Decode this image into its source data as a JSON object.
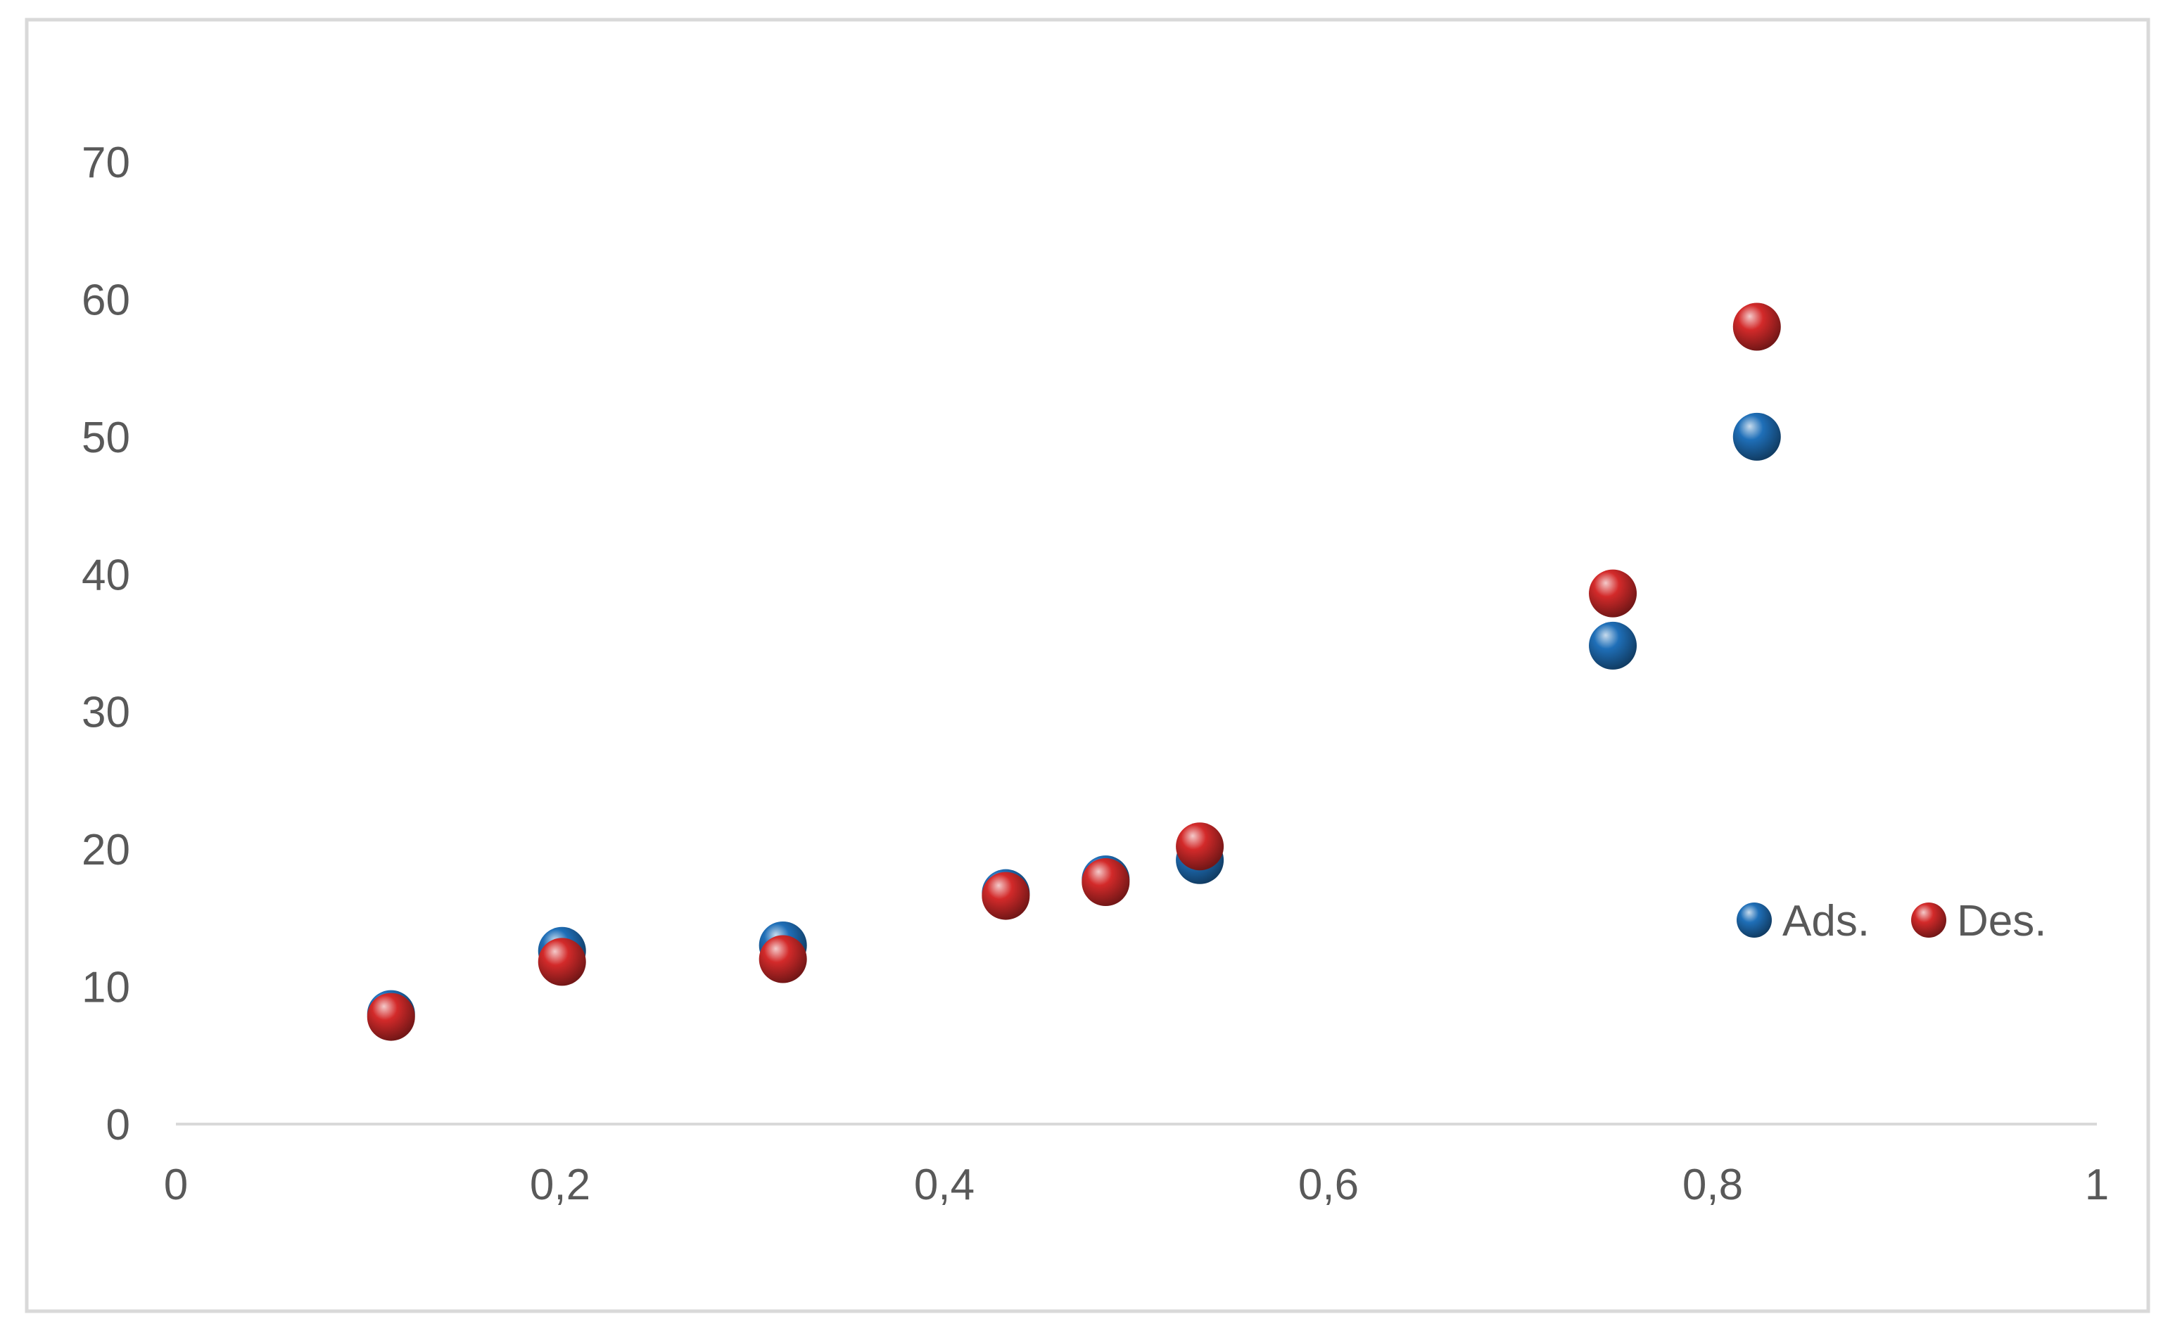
{
  "chart_data": {
    "type": "scatter",
    "xlim": [
      0,
      1
    ],
    "ylim": [
      0,
      70
    ],
    "x_ticks": [
      {
        "value": 0,
        "label": "0"
      },
      {
        "value": 0.2,
        "label": "0,2"
      },
      {
        "value": 0.4,
        "label": "0,4"
      },
      {
        "value": 0.6,
        "label": "0,6"
      },
      {
        "value": 0.8,
        "label": "0,8"
      },
      {
        "value": 1,
        "label": "1"
      }
    ],
    "y_ticks": [
      {
        "value": 0,
        "label": "0"
      },
      {
        "value": 10,
        "label": "10"
      },
      {
        "value": 20,
        "label": "20"
      },
      {
        "value": 30,
        "label": "30"
      },
      {
        "value": 40,
        "label": "40"
      },
      {
        "value": 50,
        "label": "50"
      },
      {
        "value": 60,
        "label": "60"
      },
      {
        "value": 70,
        "label": "70"
      }
    ],
    "grid": false,
    "legend_position": "right",
    "series": [
      {
        "name": "Ads.",
        "color": "#1f6fb8",
        "points": [
          {
            "x": 0.112,
            "y": 8.0
          },
          {
            "x": 0.201,
            "y": 12.6
          },
          {
            "x": 0.316,
            "y": 13.0
          },
          {
            "x": 0.432,
            "y": 16.8
          },
          {
            "x": 0.484,
            "y": 17.8
          },
          {
            "x": 0.533,
            "y": 19.2
          },
          {
            "x": 0.748,
            "y": 34.8
          },
          {
            "x": 0.823,
            "y": 50.0
          }
        ]
      },
      {
        "name": "Des.",
        "color": "#d32a2a",
        "points": [
          {
            "x": 0.112,
            "y": 7.8
          },
          {
            "x": 0.201,
            "y": 11.8
          },
          {
            "x": 0.316,
            "y": 12.0
          },
          {
            "x": 0.432,
            "y": 16.6
          },
          {
            "x": 0.484,
            "y": 17.6
          },
          {
            "x": 0.533,
            "y": 20.2
          },
          {
            "x": 0.748,
            "y": 38.6
          },
          {
            "x": 0.823,
            "y": 58.0
          }
        ]
      }
    ]
  }
}
